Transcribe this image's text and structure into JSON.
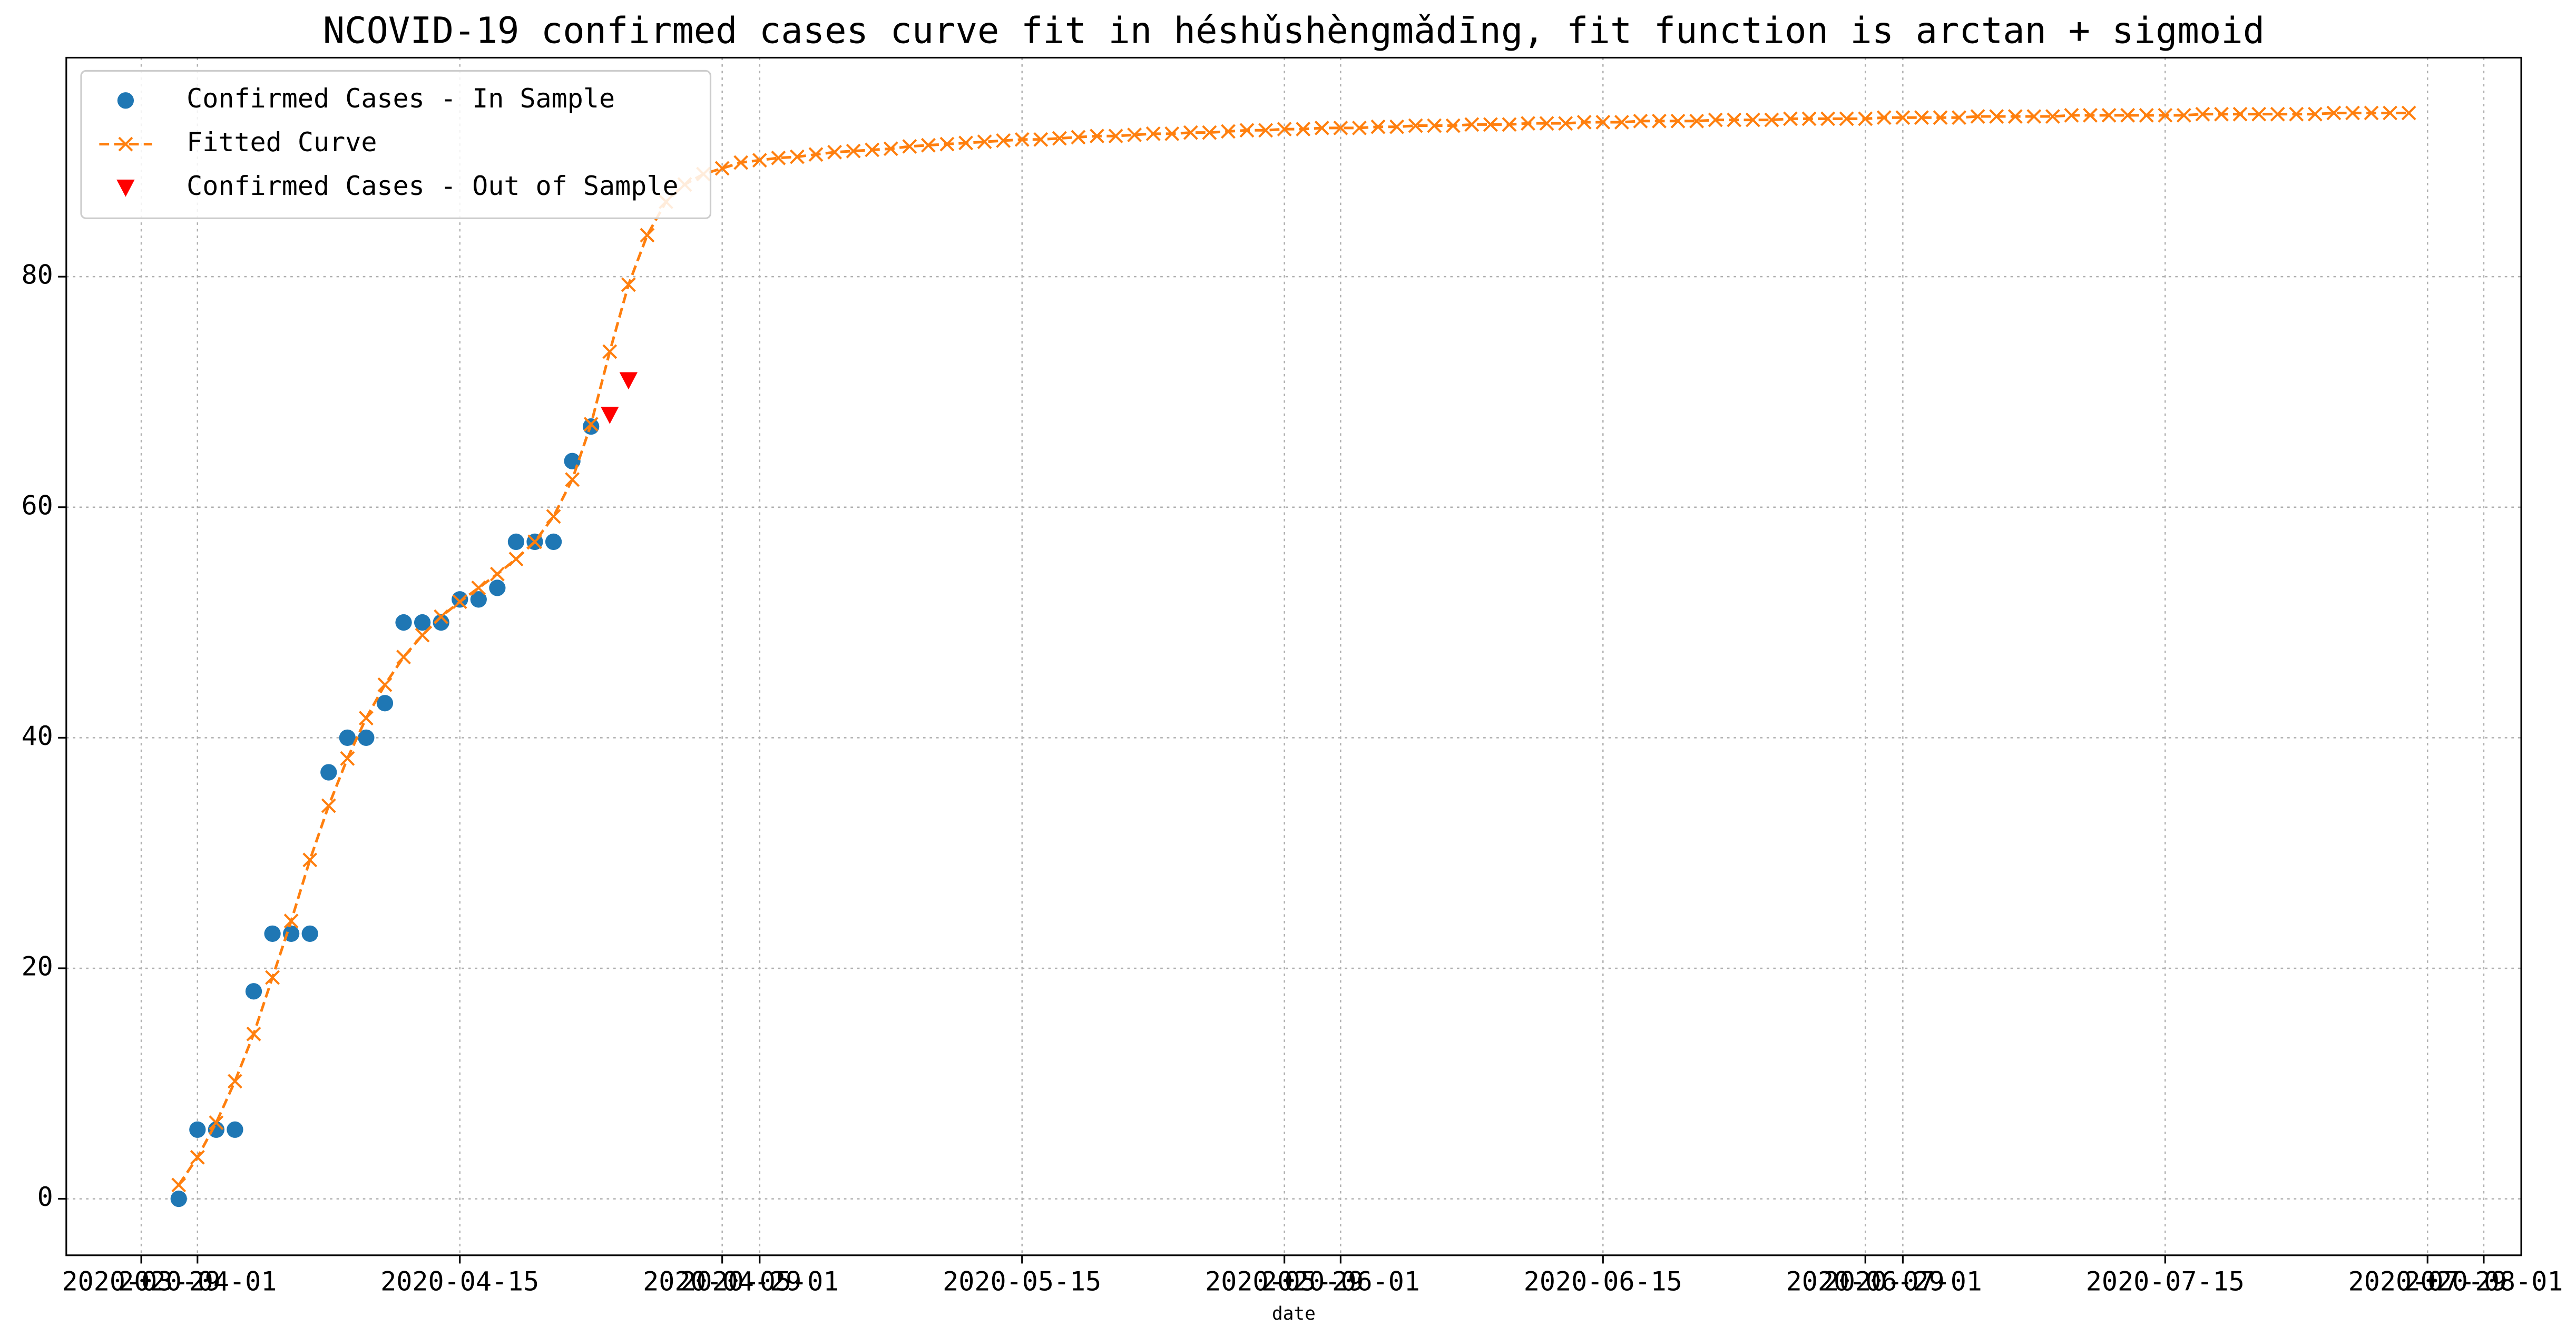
{
  "chart_data": {
    "type": "line",
    "title": "NCOVID-19 confirmed cases curve fit in héshǔshèngmǎdīng, fit function is arctan + sigmoid",
    "xlabel": "date",
    "xlim": [
      "2020-03-25",
      "2020-08-03"
    ],
    "xticks": [
      "2020-03-29",
      "2020-04-01",
      "2020-04-15",
      "2020-04-29",
      "2020-05-01",
      "2020-05-15",
      "2020-05-29",
      "2020-06-01",
      "2020-06-15",
      "2020-06-29",
      "2020-07-01",
      "2020-07-15",
      "2020-07-29",
      "2020-08-01"
    ],
    "ylim": [
      -4.9,
      99
    ],
    "yticks": [
      0,
      20,
      40,
      60,
      80
    ],
    "grid": true,
    "legend": "upper left",
    "series": [
      {
        "name": "Confirmed Cases - In Sample",
        "color": "#1f77b4",
        "marker": "circle",
        "line": false,
        "x": [
          "2020-03-31",
          "2020-04-01",
          "2020-04-02",
          "2020-04-03",
          "2020-04-04",
          "2020-04-05",
          "2020-04-06",
          "2020-04-07",
          "2020-04-08",
          "2020-04-09",
          "2020-04-10",
          "2020-04-11",
          "2020-04-12",
          "2020-04-13",
          "2020-04-14",
          "2020-04-15",
          "2020-04-16",
          "2020-04-17",
          "2020-04-18",
          "2020-04-19",
          "2020-04-20",
          "2020-04-21",
          "2020-04-22"
        ],
        "values": [
          0,
          6,
          6,
          6,
          18,
          23,
          23,
          23,
          37,
          40,
          40,
          43,
          50,
          50,
          50,
          52,
          52,
          53,
          57,
          57,
          57,
          64,
          67
        ]
      },
      {
        "name": "Fitted Curve",
        "color": "#ff7f0e",
        "marker": "x",
        "line": true,
        "x": [
          "2020-03-31",
          "2020-04-01",
          "2020-04-02",
          "2020-04-03",
          "2020-04-04",
          "2020-04-05",
          "2020-04-06",
          "2020-04-07",
          "2020-04-08",
          "2020-04-09",
          "2020-04-10",
          "2020-04-11",
          "2020-04-12",
          "2020-04-13",
          "2020-04-14",
          "2020-04-15",
          "2020-04-16",
          "2020-04-17",
          "2020-04-18",
          "2020-04-19",
          "2020-04-20",
          "2020-04-21",
          "2020-04-22",
          "2020-04-23",
          "2020-04-24",
          "2020-04-25",
          "2020-04-26",
          "2020-04-27",
          "2020-04-28",
          "2020-04-29",
          "2020-04-30",
          "2020-05-01",
          "2020-05-02",
          "2020-05-03",
          "2020-05-04",
          "2020-05-05",
          "2020-05-06",
          "2020-05-07",
          "2020-05-08",
          "2020-05-09",
          "2020-05-10",
          "2020-05-11",
          "2020-05-12",
          "2020-05-13",
          "2020-05-14",
          "2020-05-15",
          "2020-05-16",
          "2020-05-17",
          "2020-05-18",
          "2020-05-19",
          "2020-05-20",
          "2020-05-21",
          "2020-05-22",
          "2020-05-23",
          "2020-05-24",
          "2020-05-25",
          "2020-05-26",
          "2020-05-27",
          "2020-05-28",
          "2020-05-29",
          "2020-05-30",
          "2020-05-31",
          "2020-06-01",
          "2020-06-02",
          "2020-06-03",
          "2020-06-04",
          "2020-06-05",
          "2020-06-06",
          "2020-06-07",
          "2020-06-08",
          "2020-06-09",
          "2020-06-10",
          "2020-06-11",
          "2020-06-12",
          "2020-06-13",
          "2020-06-14",
          "2020-06-15",
          "2020-06-16",
          "2020-06-17",
          "2020-06-18",
          "2020-06-19",
          "2020-06-20",
          "2020-06-21",
          "2020-06-22",
          "2020-06-23",
          "2020-06-24",
          "2020-06-25",
          "2020-06-26",
          "2020-06-27",
          "2020-06-28",
          "2020-06-29",
          "2020-06-30",
          "2020-07-01",
          "2020-07-02",
          "2020-07-03",
          "2020-07-04",
          "2020-07-05",
          "2020-07-06",
          "2020-07-07",
          "2020-07-08",
          "2020-07-09",
          "2020-07-10",
          "2020-07-11",
          "2020-07-12",
          "2020-07-13",
          "2020-07-14",
          "2020-07-15",
          "2020-07-16",
          "2020-07-17",
          "2020-07-18",
          "2020-07-19",
          "2020-07-20",
          "2020-07-21",
          "2020-07-22",
          "2020-07-23",
          "2020-07-24",
          "2020-07-25",
          "2020-07-26",
          "2020-07-27",
          "2020-07-28"
        ],
        "values": [
          1.2,
          3.6,
          6.6,
          10.2,
          14.3,
          19.2,
          24.1,
          29.4,
          34.1,
          38.2,
          41.7,
          44.6,
          47.0,
          48.9,
          50.5,
          51.8,
          53.0,
          54.2,
          55.5,
          57.0,
          59.2,
          62.4,
          67.2,
          73.5,
          79.3,
          83.6,
          86.5,
          88.0,
          88.9,
          89.4,
          89.9,
          90.1,
          90.3,
          90.4,
          90.6,
          90.8,
          90.9,
          91.0,
          91.1,
          91.3,
          91.4,
          91.5,
          91.6,
          91.7,
          91.8,
          91.9,
          91.9,
          92.0,
          92.1,
          92.2,
          92.2,
          92.3,
          92.4,
          92.4,
          92.5,
          92.5,
          92.6,
          92.7,
          92.7,
          92.8,
          92.8,
          92.9,
          92.9,
          92.9,
          93.0,
          93.0,
          93.1,
          93.1,
          93.1,
          93.2,
          93.2,
          93.2,
          93.3,
          93.3,
          93.3,
          93.4,
          93.4,
          93.4,
          93.5,
          93.5,
          93.5,
          93.5,
          93.6,
          93.6,
          93.6,
          93.6,
          93.7,
          93.7,
          93.7,
          93.7,
          93.7,
          93.8,
          93.8,
          93.8,
          93.8,
          93.8,
          93.9,
          93.9,
          93.9,
          93.9,
          93.9,
          94.0,
          94.0,
          94.0,
          94.0,
          94.0,
          94.0,
          94.0,
          94.1,
          94.1,
          94.1,
          94.1,
          94.1,
          94.1,
          94.1,
          94.2,
          94.2,
          94.2,
          94.2,
          94.2
        ]
      },
      {
        "name": "Confirmed Cases - Out of Sample",
        "color": "#ff0000",
        "marker": "triangle",
        "line": false,
        "x": [
          "2020-04-23",
          "2020-04-24"
        ],
        "values": [
          68,
          71
        ]
      }
    ]
  }
}
